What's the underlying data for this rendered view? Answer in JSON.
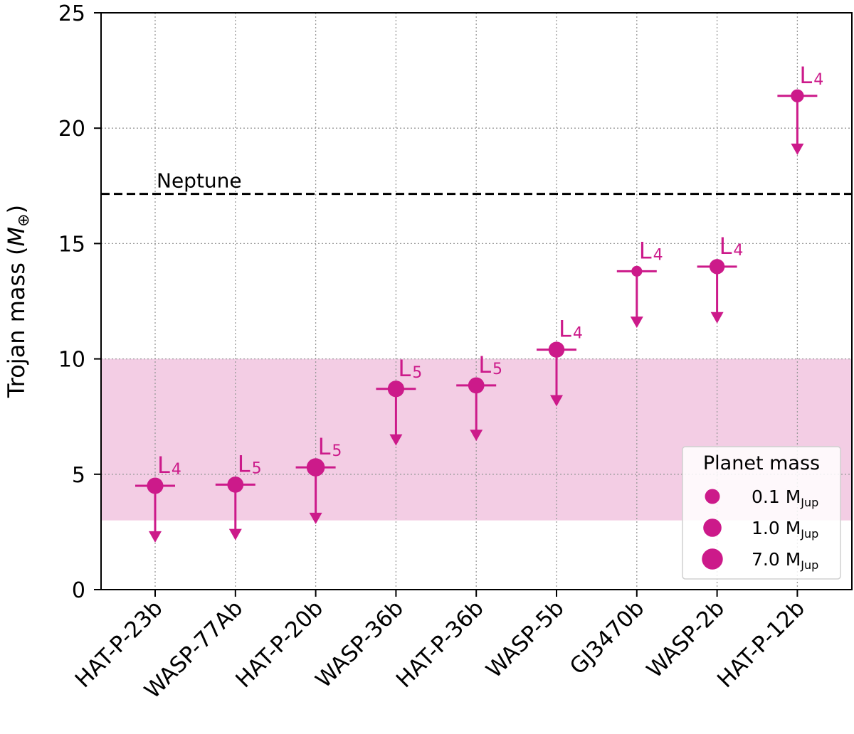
{
  "chart_data": {
    "type": "scatter",
    "title": "",
    "xlabel": "",
    "ylabel": "Trojan mass",
    "ylabel_unit": "M",
    "ylabel_unit_sub": "⊕",
    "ylim": [
      0,
      25
    ],
    "yticks": [
      0,
      5,
      10,
      15,
      20,
      25
    ],
    "grid": true,
    "categories": [
      "HAT-P-23b",
      "WASP-77Ab",
      "HAT-P-20b",
      "WASP-36b",
      "HAT-P-36b",
      "WASP-5b",
      "GJ3470b",
      "WASP-2b",
      "HAT-P-12b"
    ],
    "upper_limits": [
      4.5,
      4.55,
      5.3,
      8.7,
      8.85,
      10.4,
      13.8,
      14.0,
      21.4
    ],
    "arrow_to": [
      2.1,
      2.2,
      2.9,
      6.3,
      6.5,
      8.0,
      11.4,
      11.6,
      18.9
    ],
    "planet_mass_mjup": [
      2.1,
      1.8,
      7.2,
      2.3,
      1.8,
      1.6,
      0.04,
      0.9,
      0.2
    ],
    "lagrange": [
      {
        "main": "L",
        "sub": "4"
      },
      {
        "main": "L",
        "sub": "5"
      },
      {
        "main": "L",
        "sub": "5"
      },
      {
        "main": "L",
        "sub": "5"
      },
      {
        "main": "L",
        "sub": "5"
      },
      {
        "main": "L",
        "sub": "4"
      },
      {
        "main": "L",
        "sub": "4"
      },
      {
        "main": "L",
        "sub": "4"
      },
      {
        "main": "L",
        "sub": "4"
      }
    ],
    "neptune": {
      "label": "Neptune",
      "value": 17.15
    },
    "shaded_band": [
      3.0,
      10.0
    ],
    "colors": {
      "points": "#cc1a8a",
      "band": "#f3cde4",
      "neptune": "#000000"
    },
    "legend": {
      "title": "Planet mass",
      "placement": "lower-right",
      "entries": [
        {
          "value": 0.1,
          "label": "0.1 M",
          "sub": "Jup"
        },
        {
          "value": 1.0,
          "label": "1.0 M",
          "sub": "Jup"
        },
        {
          "value": 7.0,
          "label": "7.0 M",
          "sub": "Jup"
        }
      ]
    }
  }
}
